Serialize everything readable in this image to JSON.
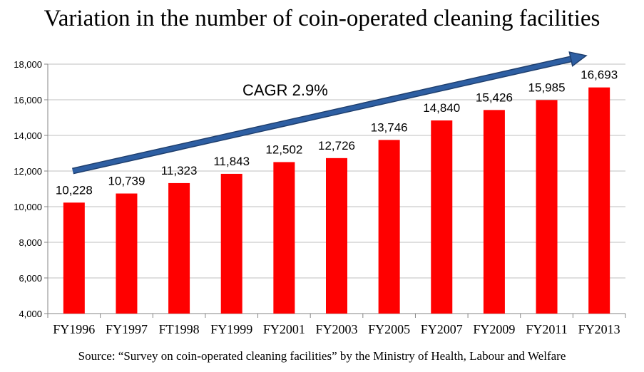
{
  "chart_data": {
    "type": "bar",
    "title": "Variation in the number of coin-operated cleaning facilities",
    "categories": [
      "FY1996",
      "FY1997",
      "FT1998",
      "FY1999",
      "FY2001",
      "FY2003",
      "FY2005",
      "FY2007",
      "FY2009",
      "FY2011",
      "FY2013"
    ],
    "values": [
      10228,
      10739,
      11323,
      11843,
      12502,
      12726,
      13746,
      14840,
      15426,
      15985,
      16693
    ],
    "value_labels": [
      "10,228",
      "10,739",
      "11,323",
      "11,843",
      "12,502",
      "12,726",
      "13,746",
      "14,840",
      "15,426",
      "15,985",
      "16,693"
    ],
    "ylim": [
      4000,
      18000
    ],
    "yticks": [
      "4,000",
      "6,000",
      "8,000",
      "10,000",
      "12,000",
      "14,000",
      "16,000",
      "18,000"
    ],
    "ytick_values": [
      4000,
      6000,
      8000,
      10000,
      12000,
      14000,
      16000,
      18000
    ],
    "grid": true,
    "xlabel": "",
    "ylabel": "",
    "annotation": "CAGR 2.9%",
    "bar_color": "#ff0000",
    "arrow_color": "#2e5fa3",
    "source": "Source: “Survey on coin-operated cleaning facilities” by the Ministry of Health, Labour and Welfare"
  }
}
